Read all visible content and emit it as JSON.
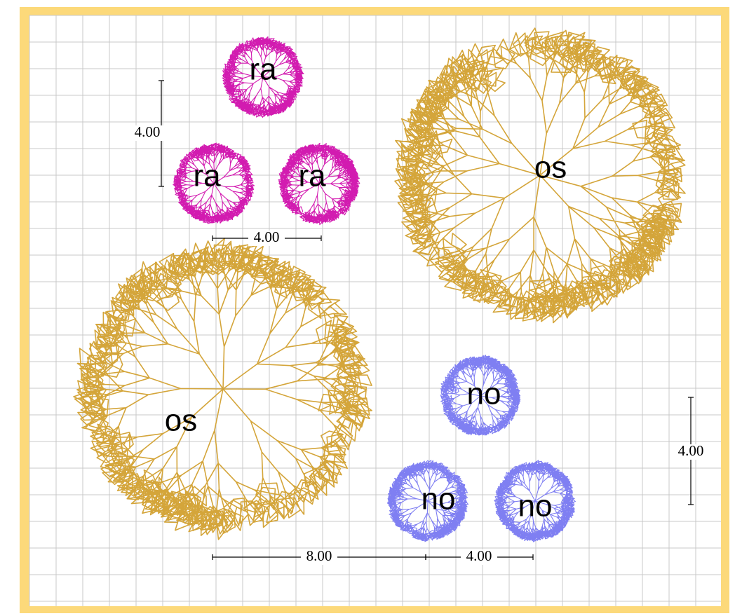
{
  "blobs": [
    {
      "label": "ra"
    },
    {
      "label": "ra"
    },
    {
      "label": "ra"
    },
    {
      "label": "os"
    },
    {
      "label": "os"
    },
    {
      "label": "no"
    },
    {
      "label": "no"
    },
    {
      "label": "no"
    }
  ],
  "dimensions": [
    {
      "label": "4.00"
    },
    {
      "label": "4.00"
    },
    {
      "label": "8.00"
    },
    {
      "label": "4.00"
    },
    {
      "label": "4.00"
    }
  ]
}
